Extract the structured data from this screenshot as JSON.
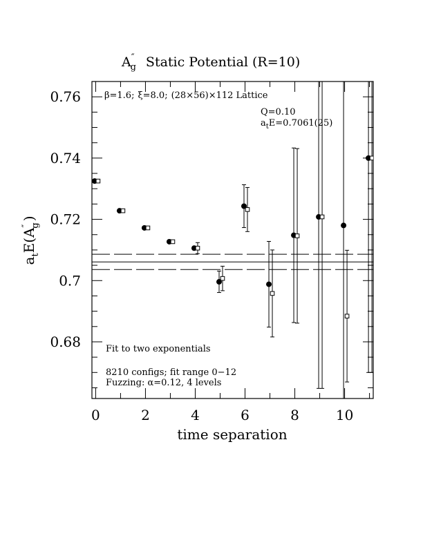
{
  "chart_data": {
    "type": "scatter",
    "title_main": "A",
    "title_sup": "″",
    "title_sub": "g",
    "title_rest": "Static Potential (R=10)",
    "xlabel": "time separation",
    "ylabel_main": "a",
    "ylabel_sub": "t",
    "ylabel_rest_pre": "E(A",
    "ylabel_rest_sup": "″",
    "ylabel_rest_sub": "g",
    "ylabel_rest_post": ")",
    "xlim": [
      -0.15,
      11.15
    ],
    "ylim": [
      0.6615,
      0.765
    ],
    "xticks": [
      0,
      2,
      4,
      6,
      8,
      10
    ],
    "xtick_labels": [
      "0",
      "2",
      "4",
      "6",
      "8",
      "10"
    ],
    "yticks": [
      0.68,
      0.7,
      0.72,
      0.74,
      0.76
    ],
    "ytick_labels": [
      "0.68",
      "0.7",
      "0.72",
      "0.74",
      "0.76"
    ],
    "lattice_label_parts": {
      "beta": "β=1.6;",
      "xi": "ξ=8.0;",
      "rest": "(28×56)×112 Lattice"
    },
    "fit_q": "Q=0.10",
    "fit_energy_pre": "a",
    "fit_energy_sub": "t",
    "fit_energy_post": "E=0.7061(25)",
    "notes": [
      "Fit to two exponentials",
      "8210 configs; fit range 0−12",
      "Fuzzing: α=0.12, 4 levels"
    ],
    "fit_band": {
      "center": 0.7061,
      "lower": 0.7036,
      "upper": 0.7086
    },
    "series": [
      {
        "marker": "filled-circle",
        "points": [
          {
            "x": 0,
            "y": 0.7325,
            "err": 0.0002
          },
          {
            "x": 1,
            "y": 0.7228,
            "err": 0.0002
          },
          {
            "x": 2,
            "y": 0.7172,
            "err": 0.0002
          },
          {
            "x": 3,
            "y": 0.7127,
            "err": 0.0003
          },
          {
            "x": 4,
            "y": 0.7106,
            "err": 0.0005
          },
          {
            "x": 5,
            "y": 0.6996,
            "err": 0.0035
          },
          {
            "x": 6,
            "y": 0.7243,
            "err": 0.007
          },
          {
            "x": 7,
            "y": 0.6988,
            "err": 0.014
          },
          {
            "x": 8,
            "y": 0.7148,
            "err": 0.0285
          },
          {
            "x": 9,
            "y": 0.7208,
            "err": 0.056
          },
          {
            "x": 10,
            "y": 0.718,
            "err": 0.06
          },
          {
            "x": 11,
            "y": 0.74,
            "err": 0.07
          }
        ]
      },
      {
        "marker": "open-square",
        "points": [
          {
            "x": 0,
            "y": 0.7325,
            "err": 0.0002
          },
          {
            "x": 1,
            "y": 0.7228,
            "err": 0.0002
          },
          {
            "x": 2,
            "y": 0.7172,
            "err": 0.0002
          },
          {
            "x": 3,
            "y": 0.7127,
            "err": 0.0004
          },
          {
            "x": 4,
            "y": 0.7106,
            "err": 0.0018
          },
          {
            "x": 5,
            "y": 0.7007,
            "err": 0.004
          },
          {
            "x": 6,
            "y": 0.7232,
            "err": 0.0072
          },
          {
            "x": 7,
            "y": 0.6958,
            "err": 0.0142
          },
          {
            "x": 8,
            "y": 0.7146,
            "err": 0.0285
          },
          {
            "x": 9,
            "y": 0.7208,
            "err": 0.056
          },
          {
            "x": 10,
            "y": 0.6884,
            "err": 0.0215
          },
          {
            "x": 11,
            "y": 0.74,
            "err": 0.07
          }
        ]
      }
    ]
  }
}
